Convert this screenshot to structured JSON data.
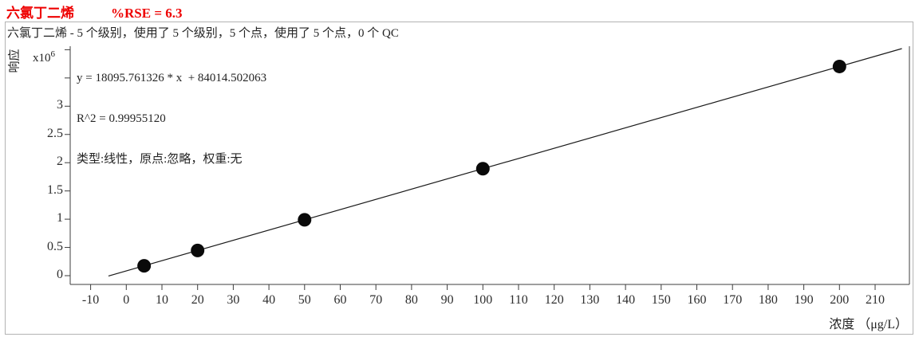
{
  "header": {
    "compound": "六氯丁二烯",
    "rse": "%RSE = 6.3",
    "color": "#ee0000"
  },
  "chart": {
    "title": "六氯丁二烯 - 5 个级别，使用了 5 个级别，5 个点，使用了 5 个点，0 个 QC",
    "equation": "y = 18095.761326 * x  + 84014.502063",
    "r2": "R^2 = 0.99955120",
    "fit_settings": "类型:线性，原点:忽略，权重:无",
    "y_axis_label": "响应",
    "y_mult_base": "x10",
    "y_mult_exp": "6",
    "x_axis_label": "浓度 （μg/L）"
  },
  "chart_data": {
    "type": "scatter",
    "title": "六氯丁二烯 - 5 个级别，使用了 5 个级别，5 个点，使用了 5 个点，0 个 QC",
    "xlabel": "浓度 （μg/L）",
    "ylabel": "响应",
    "y_unit_multiplier": "x10^6",
    "x": [
      5,
      20,
      50,
      100,
      200
    ],
    "y": [
      174493,
      445930,
      988803,
      1893591,
      3703167
    ],
    "y_e6": [
      0.1745,
      0.4459,
      0.9888,
      1.8936,
      3.7032
    ],
    "fit": {
      "slope": 18095.761326,
      "intercept": 84014.502063,
      "r_squared": 0.9995512,
      "rse_percent": 6.3,
      "type": "线性",
      "origin": "忽略",
      "weight": "无",
      "line_x_range": [
        -5,
        217.5
      ]
    },
    "x_ticks": [
      -10,
      0,
      10,
      20,
      30,
      40,
      50,
      60,
      70,
      80,
      90,
      100,
      110,
      120,
      130,
      140,
      150,
      160,
      170,
      180,
      190,
      200,
      210
    ],
    "y_ticks_e6": [
      "0",
      "0.5",
      "1",
      "1.5",
      "2",
      "2.5",
      "3"
    ],
    "y_minor_ticks_e6": [
      3.5,
      4
    ],
    "xlim": [
      -15.7,
      219.7
    ],
    "ylim_e6": [
      -0.155,
      4.06
    ],
    "grid": "off",
    "legend": "none",
    "point_color": "#0a0a0a",
    "line_color": "#1a1a1a",
    "axis_color": "#3c3c3c"
  }
}
